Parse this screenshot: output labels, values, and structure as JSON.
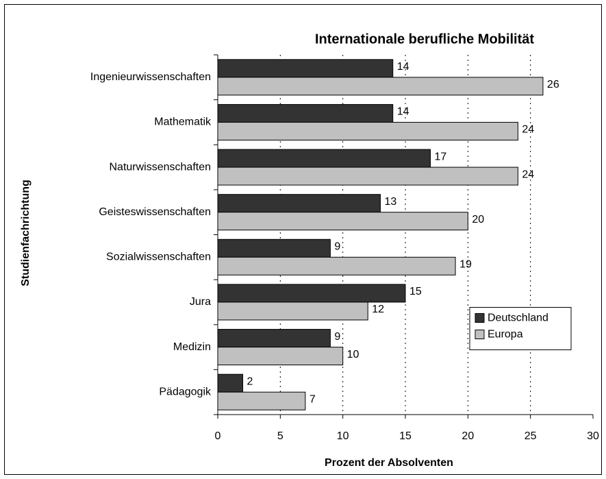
{
  "chart_data": {
    "type": "barh",
    "title": "Internationale berufliche Mobilität",
    "xlabel": "Prozent der Absolventen",
    "ylabel": "Studienfachrichtung",
    "categories": [
      "Ingenieurwissenschaften",
      "Mathematik",
      "Naturwissenschaften",
      "Geisteswissenschaften",
      "Sozialwissenschaften",
      "Jura",
      "Medizin",
      "Pädagogik"
    ],
    "series": [
      {
        "name": "Deutschland",
        "color": "#333333",
        "values": [
          14,
          14,
          17,
          13,
          9,
          15,
          9,
          2
        ]
      },
      {
        "name": "Europa",
        "color": "#c0c0c0",
        "values": [
          26,
          24,
          24,
          20,
          19,
          12,
          10,
          7
        ]
      }
    ],
    "xlim": [
      0,
      30
    ],
    "xticks": [
      0,
      5,
      10,
      15,
      20,
      25,
      30
    ],
    "grid": true,
    "legend": "center right"
  }
}
